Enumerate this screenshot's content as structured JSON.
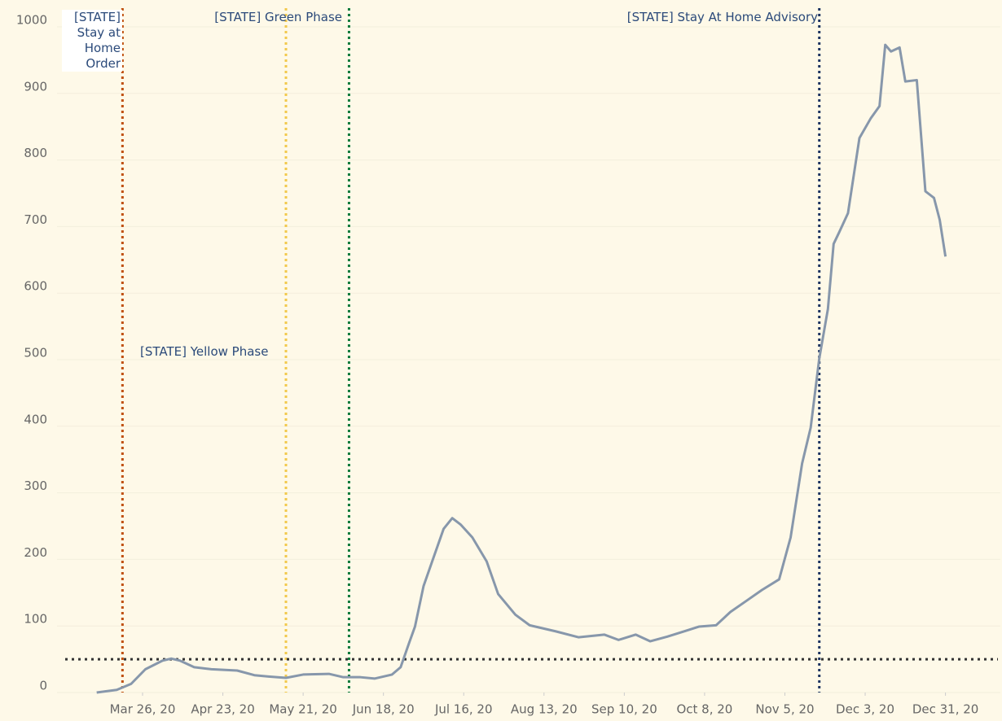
{
  "chart_data": {
    "type": "line",
    "x": [
      "2020-03-10",
      "2020-03-17",
      "2020-03-22",
      "2020-03-27",
      "2020-04-02",
      "2020-04-05",
      "2020-04-08",
      "2020-04-13",
      "2020-04-19",
      "2020-04-28",
      "2020-05-04",
      "2020-05-09",
      "2020-05-15",
      "2020-05-21",
      "2020-05-30",
      "2020-06-04",
      "2020-06-10",
      "2020-06-15",
      "2020-06-21",
      "2020-06-24",
      "2020-06-27",
      "2020-06-29",
      "2020-07-02",
      "2020-07-05",
      "2020-07-09",
      "2020-07-12",
      "2020-07-15",
      "2020-07-19",
      "2020-07-24",
      "2020-07-28",
      "2020-08-03",
      "2020-08-08",
      "2020-08-17",
      "2020-08-25",
      "2020-09-03",
      "2020-09-08",
      "2020-09-14",
      "2020-09-19",
      "2020-09-25",
      "2020-10-01",
      "2020-10-06",
      "2020-10-12",
      "2020-10-17",
      "2020-10-23",
      "2020-10-28",
      "2020-11-03",
      "2020-11-07",
      "2020-11-11",
      "2020-11-14",
      "2020-11-17",
      "2020-11-20",
      "2020-11-22",
      "2020-11-24",
      "2020-11-27",
      "2020-12-01",
      "2020-12-05",
      "2020-12-08",
      "2020-12-10",
      "2020-12-12",
      "2020-12-15",
      "2020-12-17",
      "2020-12-21",
      "2020-12-24",
      "2020-12-27",
      "2020-12-29",
      "2020-12-31"
    ],
    "series": [
      {
        "color": "#8797ab",
        "values": [
          0,
          4,
          13,
          35,
          48,
          51,
          48,
          38,
          35,
          33,
          26,
          24,
          22,
          27,
          28,
          23,
          23,
          21,
          27,
          38,
          75,
          99,
          160,
          197,
          246,
          262,
          252,
          233,
          197,
          148,
          117,
          101,
          92,
          83,
          87,
          79,
          87,
          77,
          84,
          92,
          99,
          101,
          121,
          139,
          154,
          170,
          233,
          344,
          398,
          502,
          576,
          674,
          692,
          720,
          833,
          863,
          881,
          973,
          963,
          969,
          918,
          920,
          753,
          743,
          710,
          655
        ]
      }
    ],
    "ylim": [
      0,
      1000
    ],
    "yticks": [
      0,
      100,
      200,
      300,
      400,
      500,
      600,
      700,
      800,
      900,
      1000
    ],
    "xticks": [
      {
        "value": "2020-03-26",
        "label": "Mar 26, 20"
      },
      {
        "value": "2020-04-23",
        "label": "Apr 23, 20"
      },
      {
        "value": "2020-05-21",
        "label": "May 21, 20"
      },
      {
        "value": "2020-06-18",
        "label": "Jun 18, 20"
      },
      {
        "value": "2020-07-16",
        "label": "Jul 16, 20"
      },
      {
        "value": "2020-08-13",
        "label": "Aug 13, 20"
      },
      {
        "value": "2020-09-10",
        "label": "Sep 10, 20"
      },
      {
        "value": "2020-10-08",
        "label": "Oct 8, 20"
      },
      {
        "value": "2020-11-05",
        "label": "Nov 5, 20"
      },
      {
        "value": "2020-12-03",
        "label": "Dec 3, 20"
      },
      {
        "value": "2020-12-31",
        "label": "Dec 31, 20"
      }
    ],
    "grid": true,
    "threshold": {
      "value": 50,
      "color": "#333333"
    },
    "events": [
      {
        "date": "2020-03-19",
        "label": "[STATE] Stay at Home Order",
        "color": "#c0500f"
      },
      {
        "date": "2020-05-15",
        "label": "[STATE] Yellow Phase",
        "color": "#f2c94c"
      },
      {
        "date": "2020-06-06",
        "label": "[STATE] Green Phase",
        "color": "#0b7a3b"
      },
      {
        "date": "2020-11-17",
        "label": "[STATE] Stay At Home Advisory",
        "color": "#1d3461"
      }
    ]
  }
}
